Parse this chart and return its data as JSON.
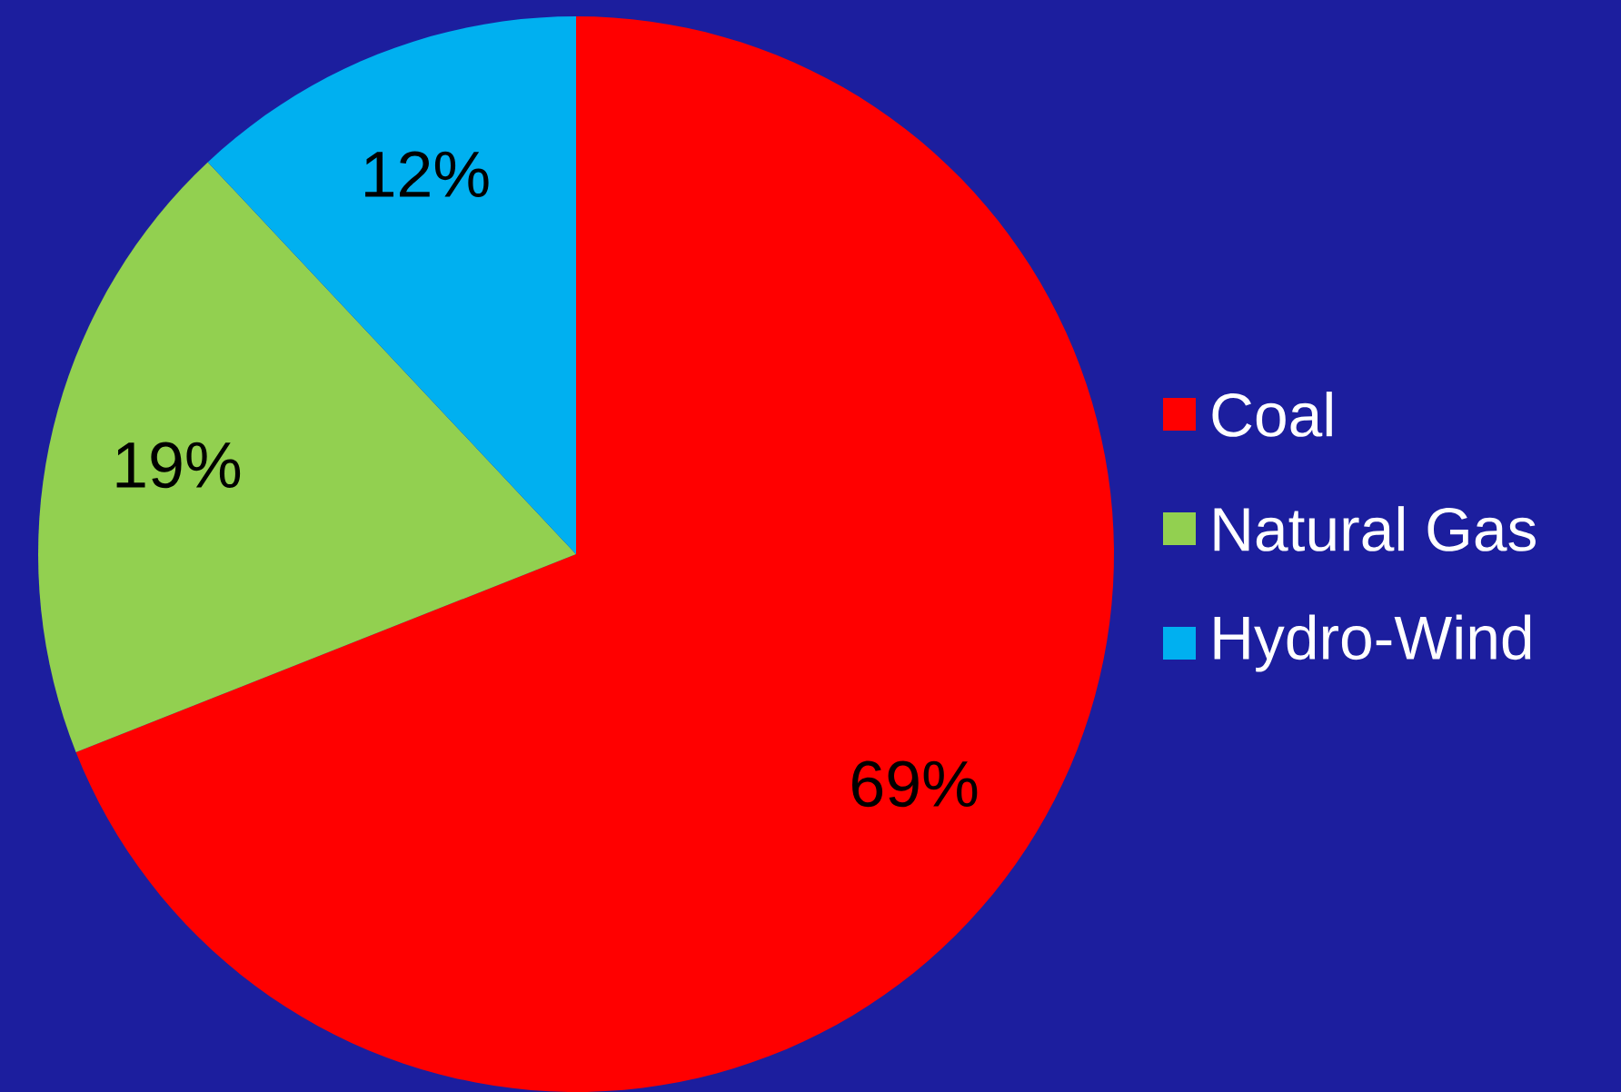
{
  "chart_data": {
    "type": "pie",
    "categories": [
      "Coal",
      "Natural Gas",
      "Hydro-Wind"
    ],
    "values": [
      69,
      19,
      12
    ],
    "colors": [
      "#ff0000",
      "#92d050",
      "#00b0f0"
    ],
    "value_labels": [
      "69%",
      "19%",
      "12%"
    ],
    "legend": "right"
  }
}
